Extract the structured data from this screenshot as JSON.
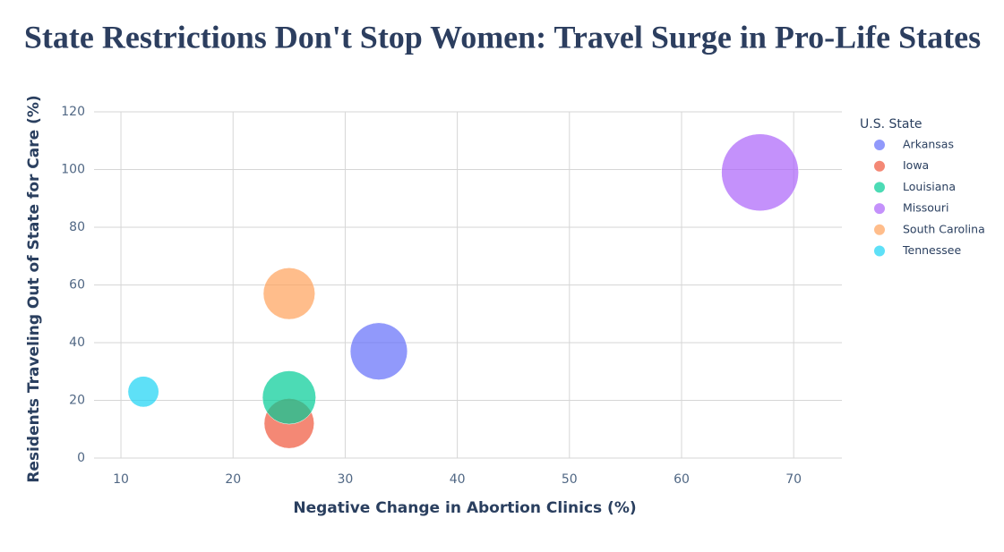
{
  "chart_data": {
    "type": "scatter",
    "title": "State Restrictions Don't Stop Women: Travel Surge in Pro-Life States",
    "x_label": "Negative Change in Abortion Clinics (%)",
    "y_label": "Residents Traveling Out of State for Care (%)",
    "legend_title": "U.S. State",
    "legend_position": "right",
    "grid": true,
    "opacity": 0.7,
    "xlim": [
      7.6,
      74.3
    ],
    "xticks": [
      10,
      20,
      30,
      40,
      50,
      60,
      70
    ],
    "ylim": [
      0,
      120
    ],
    "yticks": [
      0,
      20,
      40,
      60,
      80,
      100,
      120
    ],
    "series": [
      {
        "name": "Arkansas",
        "color": "#636efa",
        "x": [
          33
        ],
        "values": [
          37
        ],
        "sizes": [
          55
        ]
      },
      {
        "name": "Iowa",
        "color": "#ef553b",
        "x": [
          25
        ],
        "values": [
          12
        ],
        "sizes": [
          42
        ]
      },
      {
        "name": "Louisiana",
        "color": "#00cc96",
        "x": [
          25
        ],
        "values": [
          21
        ],
        "sizes": [
          48
        ]
      },
      {
        "name": "Missouri",
        "color": "#ab63fa",
        "x": [
          67
        ],
        "values": [
          99
        ],
        "sizes": [
          100
        ]
      },
      {
        "name": "South Carolina",
        "color": "#ffa15a",
        "x": [
          25
        ],
        "values": [
          57
        ],
        "sizes": [
          45
        ]
      },
      {
        "name": "Tennessee",
        "color": "#19d3f3",
        "x": [
          12
        ],
        "values": [
          23
        ],
        "sizes": [
          16
        ]
      }
    ]
  }
}
